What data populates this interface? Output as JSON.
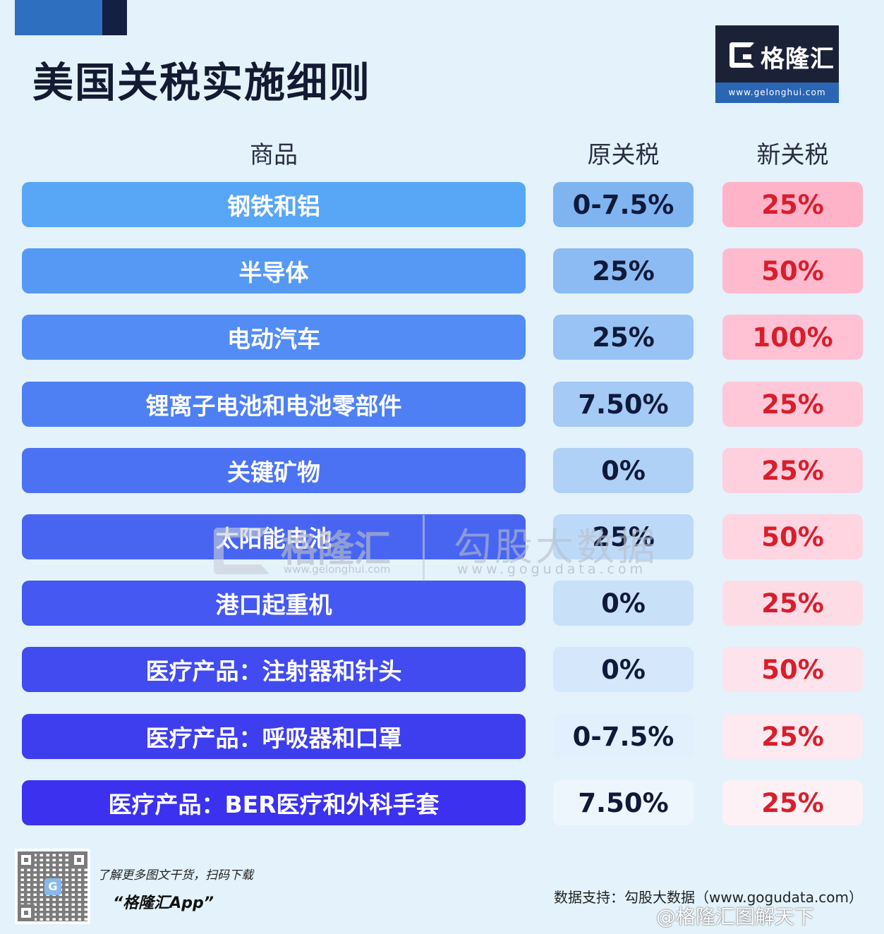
{
  "title": "美国关税实施细则",
  "logo": {
    "brand": "格隆汇",
    "url": "www.gelonghui.com"
  },
  "columns": {
    "product": "商品",
    "old": "原关税",
    "new": "新关税"
  },
  "rows": [
    {
      "product": "钢铁和铝",
      "old": "0-7.5%",
      "new": "25%"
    },
    {
      "product": "半导体",
      "old": "25%",
      "new": "50%"
    },
    {
      "product": "电动汽车",
      "old": "25%",
      "new": "100%"
    },
    {
      "product": "锂离子电池和电池零部件",
      "old": "7.50%",
      "new": "25%"
    },
    {
      "product": "关键矿物",
      "old": "0%",
      "new": "25%"
    },
    {
      "product": "太阳能电池",
      "old": "25%",
      "new": "50%"
    },
    {
      "product": "港口起重机",
      "old": "0%",
      "new": "25%"
    },
    {
      "product": "医疗产品：注射器和针头",
      "old": "0%",
      "new": "50%"
    },
    {
      "product": "医疗产品：呼吸器和口罩",
      "old": "0-7.5%",
      "new": "25%"
    },
    {
      "product": "医疗产品：BER医疗和外科手套",
      "old": "7.50%",
      "new": "25%"
    }
  ],
  "colors": {
    "product_gradient": [
      "#58a6f6",
      "#3b31ee"
    ],
    "old_gradient": [
      "#7fb4f1",
      "#eef6fd"
    ],
    "new_gradient": [
      "#ffb3c9",
      "#fdf1f5"
    ],
    "new_text": "#d81e2c"
  },
  "watermark": {
    "brand": "格隆汇",
    "brand_url": "www.gelonghui.com",
    "data_brand": "勾股大数据",
    "data_url": "www.gogudata.com"
  },
  "footer": {
    "promo": "了解更多图文干货，扫码下载",
    "app": "“格隆汇App”",
    "source": "数据支持：勾股大数据（www.gogudata.com）",
    "weibo": "@格隆汇图解天下",
    "qr_icon": "G"
  }
}
